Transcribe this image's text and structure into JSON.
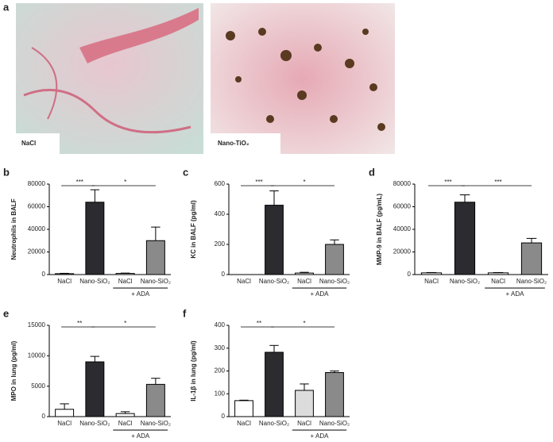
{
  "image_panels": {
    "panel": "a",
    "labels": [
      "NaCl",
      "Nano-TiO₂"
    ]
  },
  "chart_data": [
    {
      "type": "bar",
      "panel": "b",
      "y_label": "Neutrophils in BALF",
      "categories": [
        "NaCl",
        "Nano-SiO₂",
        "NaCl",
        "Nano-SiO₂"
      ],
      "group_label": "+ ADA",
      "values": [
        800,
        64000,
        1000,
        30000
      ],
      "errors": [
        300,
        11000,
        300,
        12000
      ],
      "colors": [
        "#ffffff",
        "#2b2b30",
        "#ffffff",
        "#8a8a8a"
      ],
      "ylim": [
        0,
        80000
      ],
      "yticks": [
        0,
        20000,
        40000,
        60000,
        80000
      ],
      "significance": [
        {
          "from": 0,
          "to": 1,
          "label": "***"
        },
        {
          "from": 1,
          "to": 3,
          "label": "*"
        }
      ]
    },
    {
      "type": "bar",
      "panel": "c",
      "y_label": "KC in BALF (pg/ml)",
      "categories": [
        "NaCl",
        "Nano-SiO₂",
        "NaCl",
        "Nano-SiO₂"
      ],
      "group_label": "+ ADA",
      "values": [
        0,
        460,
        10,
        200
      ],
      "errors": [
        null,
        95,
        5,
        30
      ],
      "colors": [
        "#ffffff",
        "#2b2b30",
        "#ffffff",
        "#8a8a8a"
      ],
      "ylim": [
        0,
        600
      ],
      "yticks": [
        0,
        200,
        400,
        600
      ],
      "significance": [
        {
          "from": 0,
          "to": 1,
          "label": "***"
        },
        {
          "from": 1,
          "to": 3,
          "label": "*"
        }
      ]
    },
    {
      "type": "bar",
      "panel": "d",
      "y_label": "MMP-9 in BALF (pg/mL)",
      "categories": [
        "NaCl",
        "Nano-SiO₂",
        "NaCl",
        "Nano-SiO₂"
      ],
      "group_label": "+ ADA",
      "values": [
        1500,
        64000,
        1500,
        28000
      ],
      "errors": [
        300,
        6500,
        300,
        4000
      ],
      "colors": [
        "#ffffff",
        "#2b2b30",
        "#ffffff",
        "#8a8a8a"
      ],
      "ylim": [
        0,
        80000
      ],
      "yticks": [
        0,
        20000,
        40000,
        60000,
        80000
      ],
      "significance": [
        {
          "from": 0,
          "to": 1,
          "label": "***"
        },
        {
          "from": 1,
          "to": 3,
          "label": "***"
        }
      ]
    },
    {
      "type": "bar",
      "panel": "e",
      "y_label": "MPO in lung (pg/ml)",
      "categories": [
        "NaCl",
        "Nano-SiO₂",
        "NaCl",
        "Nano-SiO₂"
      ],
      "group_label": "+ ADA",
      "values": [
        1200,
        9000,
        500,
        5300
      ],
      "errors": [
        900,
        900,
        300,
        1000
      ],
      "colors": [
        "#ffffff",
        "#2b2b30",
        "#ffffff",
        "#8a8a8a"
      ],
      "ylim": [
        0,
        15000
      ],
      "yticks": [
        0,
        5000,
        10000,
        15000
      ],
      "significance": [
        {
          "from": 0,
          "to": 1,
          "label": "**"
        },
        {
          "from": 1,
          "to": 3,
          "label": "*"
        }
      ]
    },
    {
      "type": "bar",
      "panel": "f",
      "y_label": "IL-1β in lung (pg/ml)",
      "categories": [
        "NaCl",
        "Nano-SiO₂",
        "NaCl",
        "Nano-SiO₂"
      ],
      "group_label": "+ ADA",
      "values": [
        70,
        282,
        115,
        193
      ],
      "errors": [
        2,
        30,
        28,
        7
      ],
      "colors": [
        "#ffffff",
        "#2b2b30",
        "#dcdcdc",
        "#8a8a8a"
      ],
      "ylim": [
        0,
        400
      ],
      "yticks": [
        0,
        100,
        200,
        300,
        400
      ],
      "significance": [
        {
          "from": 0,
          "to": 1,
          "label": "**"
        },
        {
          "from": 1,
          "to": 3,
          "label": "*"
        }
      ]
    }
  ]
}
